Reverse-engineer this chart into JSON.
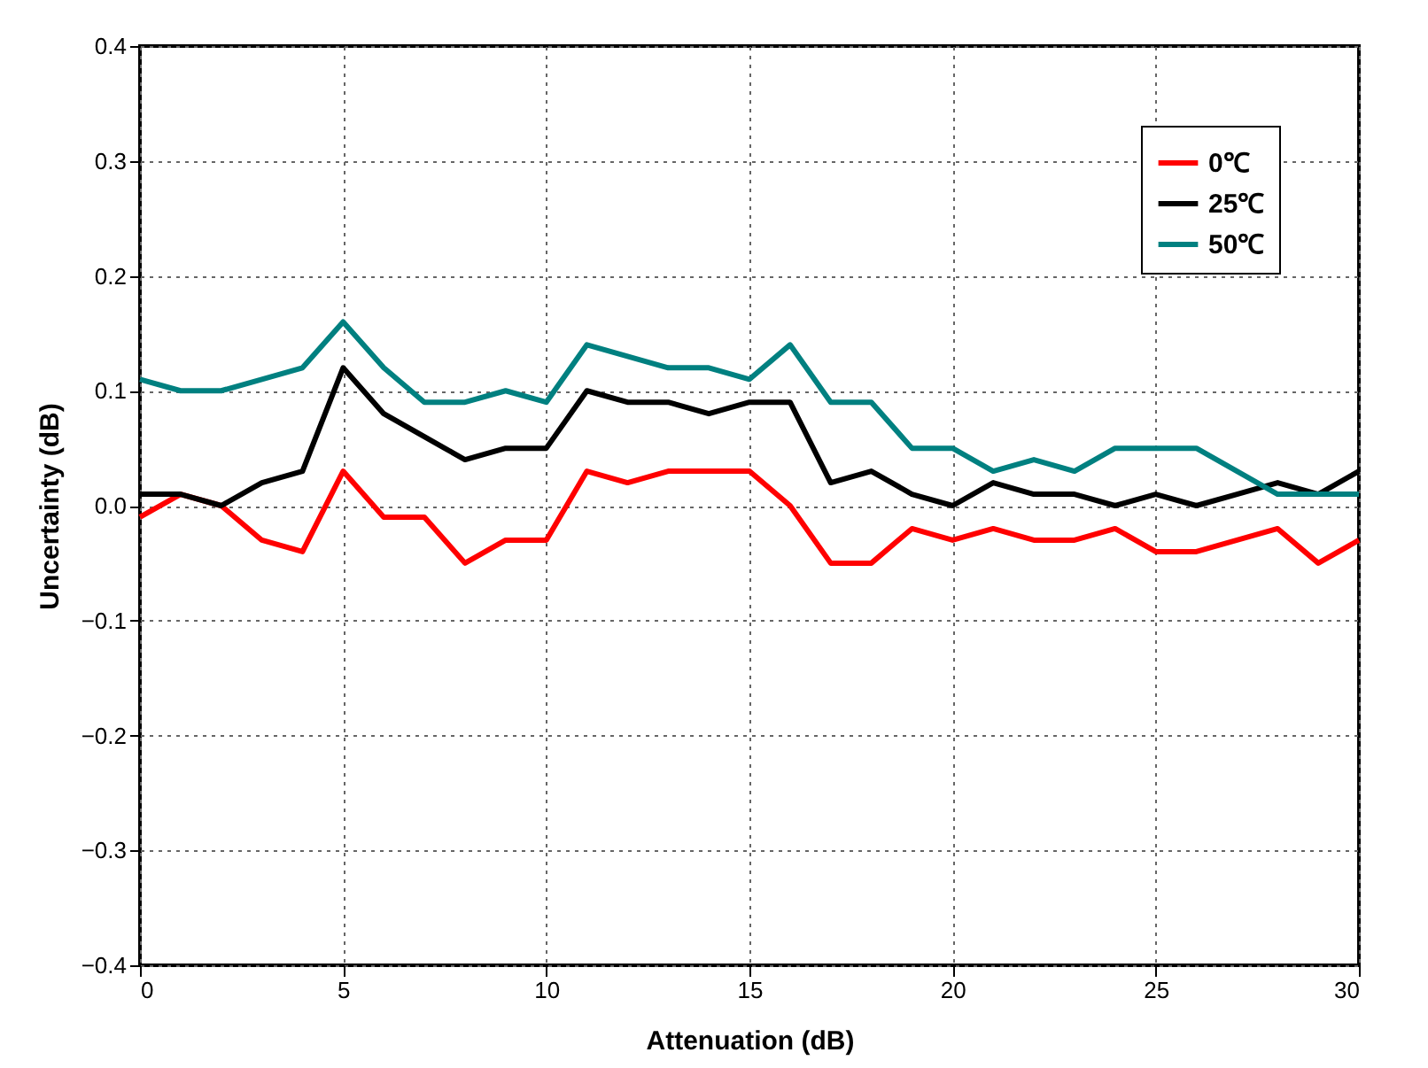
{
  "chart_data": {
    "type": "line",
    "xlabel": "Attenuation (dB)",
    "ylabel": "Uncertainty (dB)",
    "x": [
      0,
      1,
      2,
      3,
      4,
      5,
      6,
      7,
      8,
      9,
      10,
      11,
      12,
      13,
      14,
      15,
      16,
      17,
      18,
      19,
      20,
      21,
      22,
      23,
      24,
      25,
      26,
      27,
      28,
      29,
      30
    ],
    "series": [
      {
        "name": "0℃",
        "color": "#ff0000",
        "values": [
          -0.01,
          0.01,
          0,
          -0.03,
          -0.04,
          0.03,
          -0.01,
          -0.01,
          -0.05,
          -0.03,
          -0.03,
          0.03,
          0.02,
          0.03,
          0.03,
          0.03,
          0,
          -0.05,
          -0.05,
          -0.02,
          -0.03,
          -0.02,
          -0.03,
          -0.03,
          -0.02,
          -0.04,
          -0.04,
          -0.03,
          -0.02,
          -0.05,
          -0.03
        ]
      },
      {
        "name": "25℃",
        "color": "#000000",
        "values": [
          0.01,
          0.01,
          0,
          0.02,
          0.03,
          0.12,
          0.08,
          0.06,
          0.04,
          0.05,
          0.05,
          0.1,
          0.09,
          0.09,
          0.08,
          0.09,
          0.09,
          0.02,
          0.03,
          0.01,
          0,
          0.02,
          0.01,
          0.01,
          0,
          0.01,
          0,
          0.01,
          0.02,
          0.01,
          0.03
        ]
      },
      {
        "name": "50℃",
        "color": "#008080",
        "values": [
          0.11,
          0.1,
          0.1,
          0.11,
          0.12,
          0.16,
          0.12,
          0.09,
          0.09,
          0.1,
          0.09,
          0.14,
          0.13,
          0.12,
          0.12,
          0.11,
          0.14,
          0.09,
          0.09,
          0.05,
          0.05,
          0.03,
          0.04,
          0.03,
          0.05,
          0.05,
          0.05,
          0.03,
          0.01,
          0.01,
          0.01
        ]
      }
    ],
    "xlim": [
      0,
      30
    ],
    "xticks": [
      0,
      5,
      10,
      15,
      20,
      25,
      30
    ],
    "ylim": [
      -0.4,
      0.4
    ],
    "yticks": [
      -0.4,
      -0.3,
      -0.2,
      -0.1,
      {
        "value": 0,
        "label": "0.0"
      },
      0.1,
      0.2,
      0.3,
      0.4
    ],
    "grid": true,
    "legend": "top right",
    "marker": "none",
    "line_style": "solid"
  }
}
